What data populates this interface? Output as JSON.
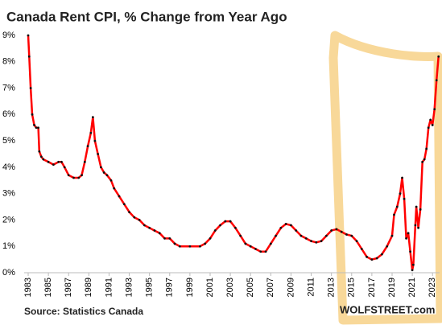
{
  "chart_data": {
    "type": "line",
    "title": "Canada  Rent CPI, % Change from Year Ago",
    "source": "Source: Statistics Canada",
    "brand": "WOLFSTREET.com",
    "color": "#ff0000",
    "x": [
      1983.0,
      1983.1,
      1983.25,
      1983.4,
      1983.6,
      1983.8,
      1984.0,
      1984.1,
      1984.3,
      1984.5,
      1985.0,
      1985.5,
      1986.0,
      1986.3,
      1986.6,
      1987.0,
      1987.5,
      1988.0,
      1988.3,
      1988.6,
      1988.9,
      1989.2,
      1989.4,
      1989.6,
      1989.9,
      1990.2,
      1990.5,
      1990.8,
      1991.2,
      1991.5,
      1992.0,
      1992.5,
      1993.0,
      1993.5,
      1994.0,
      1994.5,
      1995.0,
      1995.5,
      1996.0,
      1996.5,
      1997.0,
      1997.5,
      1998.0,
      1999.0,
      2000.0,
      2000.5,
      2001.0,
      2001.5,
      2002.0,
      2002.5,
      2003.0,
      2003.5,
      2004.0,
      2004.5,
      2005.0,
      2005.5,
      2006.0,
      2006.5,
      2007.0,
      2007.5,
      2008.0,
      2008.5,
      2009.0,
      2009.5,
      2010.0,
      2010.5,
      2011.0,
      2011.5,
      2012.0,
      2012.5,
      2013.0,
      2013.5,
      2014.0,
      2014.5,
      2015.0,
      2015.5,
      2016.0,
      2016.5,
      2017.0,
      2017.5,
      2018.0,
      2018.5,
      2019.0,
      2019.2,
      2019.5,
      2019.8,
      2020.0,
      2020.2,
      2020.4,
      2020.6,
      2020.8,
      2021.0,
      2021.1,
      2021.3,
      2021.4,
      2021.6,
      2021.8,
      2022.0,
      2022.2,
      2022.4,
      2022.6,
      2022.8,
      2023.0,
      2023.2,
      2023.4,
      2023.6
    ],
    "values": [
      9.0,
      8.2,
      7.0,
      6.0,
      5.6,
      5.5,
      5.5,
      4.6,
      4.4,
      4.3,
      4.2,
      4.1,
      4.2,
      4.2,
      4.0,
      3.7,
      3.6,
      3.6,
      3.7,
      4.2,
      4.8,
      5.3,
      5.9,
      5.0,
      4.5,
      4.0,
      3.8,
      3.7,
      3.5,
      3.2,
      2.9,
      2.6,
      2.3,
      2.1,
      2.0,
      1.8,
      1.7,
      1.6,
      1.5,
      1.3,
      1.3,
      1.1,
      1.0,
      1.0,
      1.0,
      1.1,
      1.3,
      1.6,
      1.8,
      1.95,
      1.95,
      1.7,
      1.4,
      1.1,
      1.0,
      0.9,
      0.8,
      0.8,
      1.1,
      1.4,
      1.7,
      1.85,
      1.8,
      1.6,
      1.4,
      1.3,
      1.2,
      1.15,
      1.2,
      1.4,
      1.6,
      1.65,
      1.55,
      1.45,
      1.4,
      1.2,
      0.9,
      0.6,
      0.5,
      0.55,
      0.7,
      1.0,
      1.4,
      2.2,
      2.5,
      3.0,
      3.6,
      2.8,
      1.3,
      1.5,
      0.8,
      0.1,
      0.3,
      1.8,
      2.5,
      1.7,
      2.4,
      4.2,
      4.3,
      4.7,
      5.5,
      5.8,
      5.6,
      6.2,
      7.3,
      8.2
    ],
    "xlim": [
      1983,
      2023.7
    ],
    "xticks": [
      1983,
      1985,
      1987,
      1989,
      1991,
      1993,
      1995,
      1997,
      1999,
      2001,
      2003,
      2005,
      2007,
      2009,
      2011,
      2013,
      2015,
      2017,
      2019,
      2021,
      2023
    ],
    "ylim": [
      0,
      9
    ],
    "yticks": [
      {
        "value": 0,
        "label": "0%"
      },
      {
        "value": 1,
        "label": "1%"
      },
      {
        "value": 2,
        "label": "2%"
      },
      {
        "value": 3,
        "label": "3%"
      },
      {
        "value": 4,
        "label": "4%"
      },
      {
        "value": 5,
        "label": "5%"
      },
      {
        "value": 6,
        "label": "6%"
      },
      {
        "value": 7,
        "label": "7%"
      },
      {
        "value": 8,
        "label": "8%"
      },
      {
        "value": 9,
        "label": "9%"
      }
    ],
    "grid": false
  }
}
